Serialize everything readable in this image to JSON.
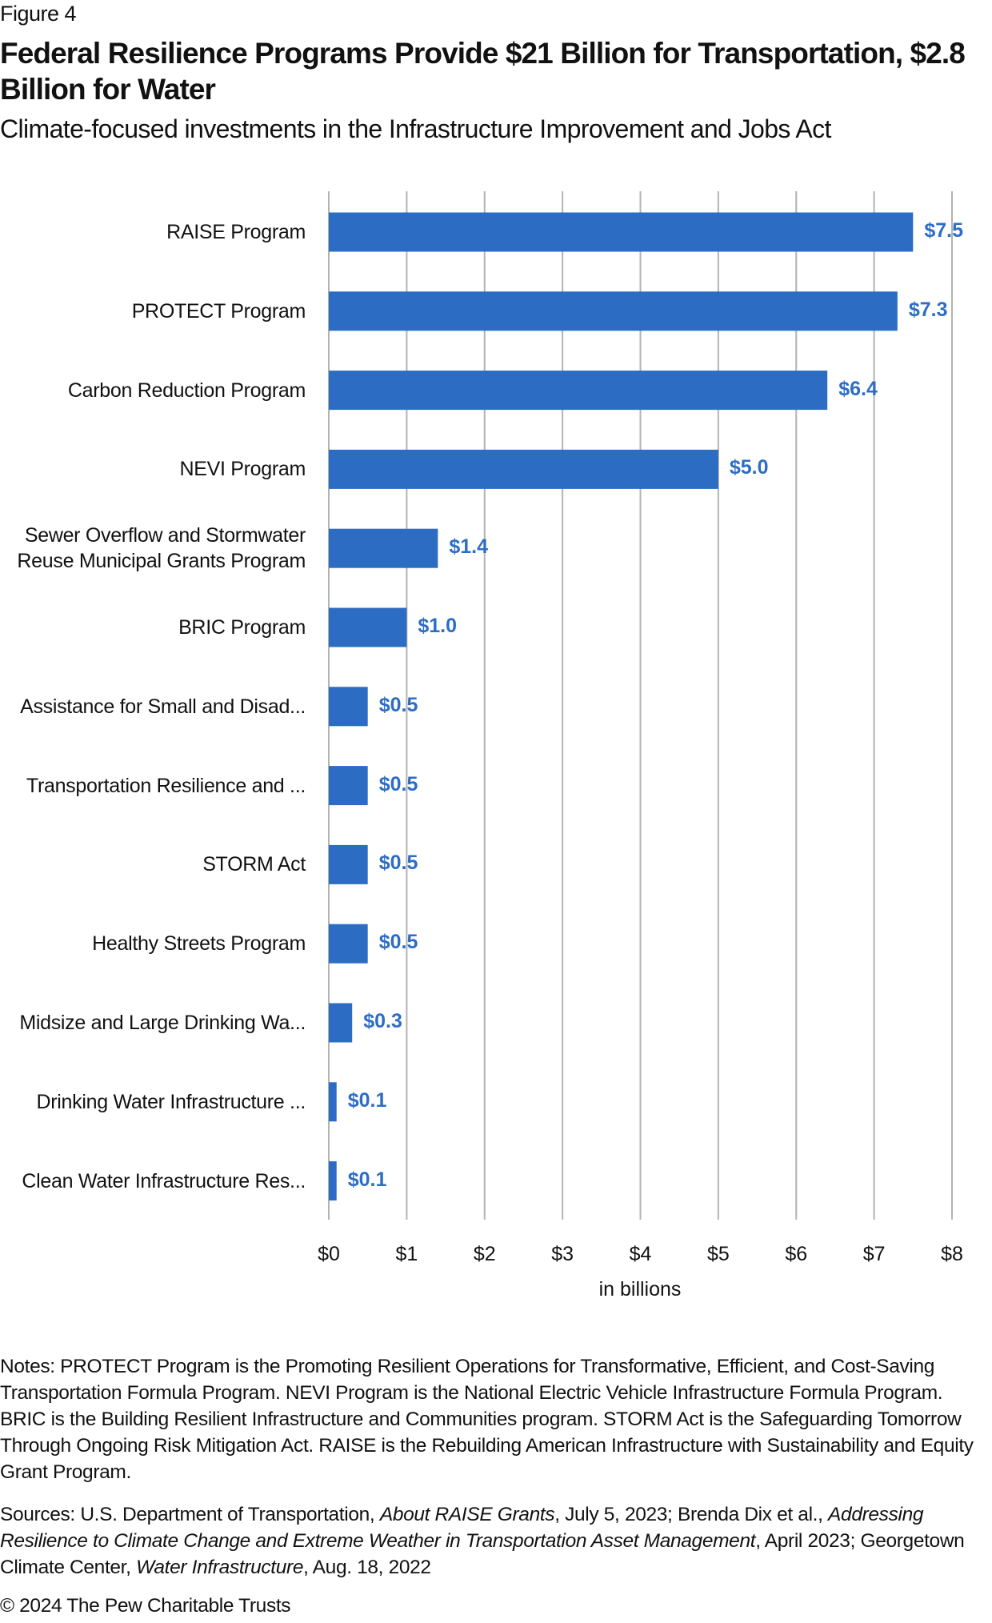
{
  "figure_label": "Figure 4",
  "chart_data": {
    "type": "bar",
    "orientation": "horizontal",
    "title": "Federal Resilience Programs Provide $21 Billion for Transportation, $2.8 Billion for Water",
    "subtitle": "Climate-focused investments in the Infrastructure Improvement and Jobs Act",
    "categories": [
      [
        "RAISE Program"
      ],
      [
        "PROTECT Program"
      ],
      [
        "Carbon Reduction Program"
      ],
      [
        "NEVI Program"
      ],
      [
        "Sewer Overflow and Stormwater",
        "Reuse Municipal Grants Program"
      ],
      [
        "BRIC Program"
      ],
      [
        "Assistance for Small and Disad..."
      ],
      [
        "Transportation Resilience and ..."
      ],
      [
        "STORM Act"
      ],
      [
        "Healthy Streets Program"
      ],
      [
        "Midsize and Large Drinking Wa..."
      ],
      [
        "Drinking Water Infrastructure ..."
      ],
      [
        "Clean Water Infrastructure Res..."
      ]
    ],
    "values": [
      7.5,
      7.3,
      6.4,
      5.0,
      1.4,
      1.0,
      0.5,
      0.5,
      0.5,
      0.5,
      0.3,
      0.1,
      0.1
    ],
    "value_labels": [
      "$7.5",
      "$7.3",
      "$6.4",
      "$5.0",
      "$1.4",
      "$1.0",
      "$0.5",
      "$0.5",
      "$0.5",
      "$0.5",
      "$0.3",
      "$0.1",
      "$0.1"
    ],
    "xlabel": "in billions",
    "xlim": [
      0,
      8
    ],
    "xticks": [
      0,
      1,
      2,
      3,
      4,
      5,
      6,
      7,
      8
    ],
    "xtick_labels": [
      "$0",
      "$1",
      "$2",
      "$3",
      "$4",
      "$5",
      "$6",
      "$7",
      "$8"
    ],
    "grid": "vertical",
    "bar_color": "#2c6cc3",
    "label_color": "#2d6dc5"
  },
  "notes": "Notes: PROTECT Program is the Promoting Resilient Operations for Transformative, Efficient, and Cost-Saving Transportation Formula Program. NEVI Program is the National Electric Vehicle Infrastructure Formula Program. BRIC is the Building Resilient Infrastructure and Communities program. STORM Act is the Safeguarding Tomorrow Through Ongoing Risk Mitigation Act. RAISE is the Rebuilding American Infrastructure with Sustainability and Equity Grant Program.",
  "sources": {
    "p1": "Sources: U.S. Department of Transportation, ",
    "i1": "About RAISE Grants",
    "p2": ", July 5, 2023; Brenda Dix et al., ",
    "i2": "Addressing Resilience to Climate Change and Extreme Weather in Transportation Asset Management",
    "p3": ", April 2023; Georgetown Climate Center, ",
    "i3": "Water Infrastructure",
    "p4": ", Aug. 18, 2022"
  },
  "copyright": "© 2024 The Pew Charitable Trusts"
}
